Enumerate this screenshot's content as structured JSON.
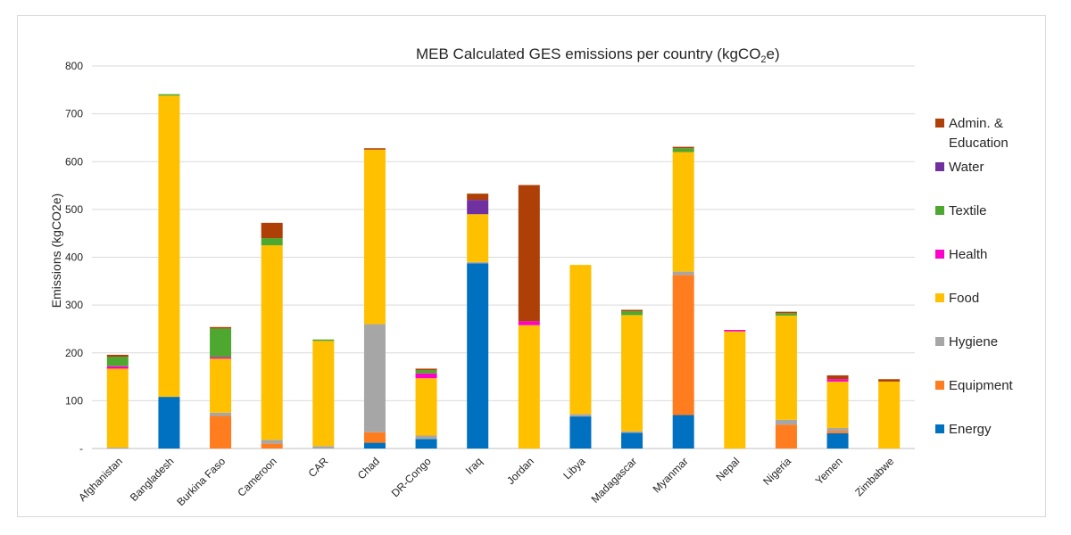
{
  "chart_data": {
    "type": "bar",
    "stacked": true,
    "title_main": "MEB Calculated GES emissions per country (kgCO",
    "title_sub": "2",
    "title_end": "e)",
    "ylabel": "Emissions (kgCO2e)",
    "xlabel": "",
    "ylim": [
      0,
      800
    ],
    "yticks": [
      0,
      100,
      200,
      300,
      400,
      500,
      600,
      700,
      800
    ],
    "ytick_labels": [
      "-",
      "100",
      "200",
      "300",
      "400",
      "500",
      "600",
      "700",
      "800"
    ],
    "grid": true,
    "legend_position": "right",
    "categories": [
      "Afghanistan",
      "Bangladesh",
      "Burkina Faso",
      "Cameroon",
      "CAR",
      "Chad",
      "DR-Congo",
      "Iraq",
      "Jordan",
      "Libya",
      "Madagascar",
      "Myanmar",
      "Nepal",
      "Nigeria",
      "Yemen",
      "Zimbabwe"
    ],
    "series": [
      {
        "name": "Energy",
        "color": "#0070C0",
        "values": [
          0,
          108,
          0,
          0,
          0,
          12,
          20,
          387,
          0,
          67,
          33,
          70,
          0,
          0,
          32,
          0
        ]
      },
      {
        "name": "Equipment",
        "color": "#FF7C1F",
        "values": [
          0,
          0,
          68,
          10,
          0,
          22,
          0,
          0,
          0,
          0,
          0,
          293,
          0,
          50,
          5,
          0
        ]
      },
      {
        "name": "Hygiene",
        "color": "#A6A6A6",
        "values": [
          2,
          0,
          7,
          8,
          5,
          226,
          7,
          3,
          0,
          5,
          3,
          7,
          0,
          10,
          6,
          0
        ]
      },
      {
        "name": "Food",
        "color": "#FFC000",
        "values": [
          165,
          630,
          113,
          407,
          220,
          365,
          120,
          100,
          258,
          312,
          243,
          250,
          245,
          218,
          97,
          140
        ]
      },
      {
        "name": "Health",
        "color": "#FF00CC",
        "values": [
          5,
          0,
          3,
          0,
          0,
          0,
          10,
          0,
          8,
          0,
          0,
          0,
          3,
          0,
          5,
          0
        ]
      },
      {
        "name": "Textile",
        "color": "#4EA72E",
        "values": [
          20,
          3,
          60,
          15,
          3,
          0,
          7,
          0,
          0,
          0,
          8,
          8,
          0,
          5,
          0,
          0
        ]
      },
      {
        "name": "Water",
        "color": "#7030A0",
        "values": [
          0,
          0,
          0,
          0,
          0,
          0,
          0,
          30,
          0,
          0,
          0,
          0,
          0,
          0,
          0,
          0
        ]
      },
      {
        "name": "Admin. & Education",
        "color": "#AE3F06",
        "values": [
          4,
          0,
          3,
          32,
          0,
          3,
          3,
          13,
          285,
          0,
          3,
          3,
          0,
          3,
          8,
          5
        ]
      }
    ]
  },
  "legend": {
    "entries": [
      {
        "lines": [
          "Admin. &",
          "Education"
        ],
        "color": "#AE3F06"
      },
      {
        "lines": [
          "Water"
        ],
        "color": "#7030A0"
      },
      {
        "lines": [
          "Textile"
        ],
        "color": "#4EA72E"
      },
      {
        "lines": [
          "Health"
        ],
        "color": "#FF00CC"
      },
      {
        "lines": [
          "Food"
        ],
        "color": "#FFC000"
      },
      {
        "lines": [
          "Hygiene"
        ],
        "color": "#A6A6A6"
      },
      {
        "lines": [
          "Equipment"
        ],
        "color": "#FF7C1F"
      },
      {
        "lines": [
          "Energy"
        ],
        "color": "#0070C0"
      }
    ]
  }
}
